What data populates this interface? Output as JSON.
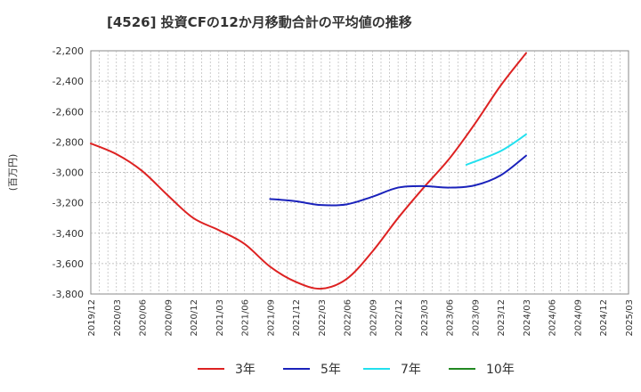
{
  "chart_data": {
    "type": "line",
    "title": "[4526]  投資CFの12か月移動合計の平均値の推移",
    "ylabel": "(百万円)",
    "xlabel": "",
    "ylim": [
      -3800,
      -2200
    ],
    "yticks": [
      -2200,
      -2400,
      -2600,
      -2800,
      -3000,
      -3200,
      -3400,
      -3600,
      -3800
    ],
    "ytick_labels": [
      "-2,200",
      "-2,400",
      "-2,600",
      "-2,800",
      "-3,000",
      "-3,200",
      "-3,400",
      "-3,600",
      "-3,800"
    ],
    "x_range": [
      "2019/12",
      "2025/03"
    ],
    "xticks": [
      "2019/12",
      "2020/03",
      "2020/06",
      "2020/09",
      "2020/12",
      "2021/03",
      "2021/06",
      "2021/09",
      "2021/12",
      "2022/03",
      "2022/06",
      "2022/09",
      "2022/12",
      "2023/03",
      "2023/06",
      "2023/09",
      "2023/12",
      "2024/03",
      "2024/06",
      "2024/09",
      "2024/12",
      "2025/03"
    ],
    "grid": true,
    "legend_position": "bottom",
    "series": [
      {
        "name": "3年",
        "color": "#dd2222",
        "points": [
          [
            "2019/12",
            -2810
          ],
          [
            "2020/03",
            -2880
          ],
          [
            "2020/06",
            -2990
          ],
          [
            "2020/09",
            -3150
          ],
          [
            "2020/12",
            -3300
          ],
          [
            "2021/03",
            -3380
          ],
          [
            "2021/06",
            -3470
          ],
          [
            "2021/09",
            -3620
          ],
          [
            "2021/12",
            -3720
          ],
          [
            "2022/03",
            -3765
          ],
          [
            "2022/06",
            -3700
          ],
          [
            "2022/09",
            -3520
          ],
          [
            "2022/12",
            -3300
          ],
          [
            "2023/03",
            -3100
          ],
          [
            "2023/06",
            -2910
          ],
          [
            "2023/09",
            -2680
          ],
          [
            "2023/12",
            -2430
          ],
          [
            "2024/03",
            -2215
          ]
        ]
      },
      {
        "name": "5年",
        "color": "#1a22bb",
        "points": [
          [
            "2021/09",
            -3175
          ],
          [
            "2021/12",
            -3190
          ],
          [
            "2022/03",
            -3215
          ],
          [
            "2022/06",
            -3210
          ],
          [
            "2022/09",
            -3160
          ],
          [
            "2022/12",
            -3100
          ],
          [
            "2023/03",
            -3090
          ],
          [
            "2023/06",
            -3100
          ],
          [
            "2023/09",
            -3085
          ],
          [
            "2023/12",
            -3020
          ],
          [
            "2024/03",
            -2890
          ]
        ]
      },
      {
        "name": "7年",
        "color": "#22e0ee",
        "points": [
          [
            "2023/08",
            -2950
          ],
          [
            "2023/12",
            -2860
          ],
          [
            "2024/03",
            -2750
          ]
        ]
      },
      {
        "name": "10年",
        "color": "#228822",
        "points": []
      }
    ]
  }
}
